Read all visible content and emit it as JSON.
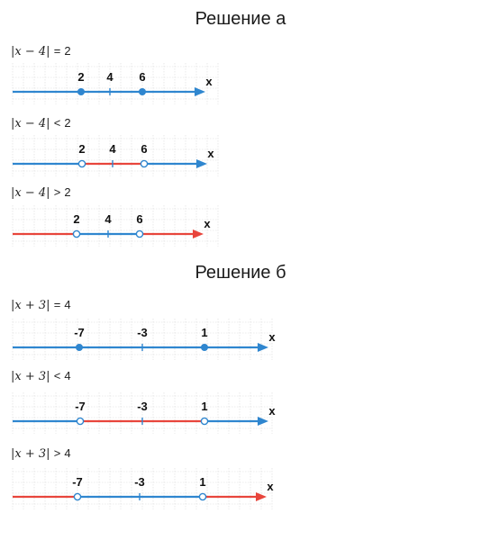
{
  "sections": [
    {
      "title": "Решение а",
      "problems": [
        {
          "eq": {
            "expr": "x − 4",
            "rel": "=",
            "rhs": "2"
          },
          "ticks": [
            "2",
            "4",
            "6"
          ],
          "axis": "x",
          "points": [
            {
              "label": "2",
              "filled": true
            },
            {
              "label": "6",
              "filled": true
            }
          ],
          "segments": [
            {
              "from": "start",
              "to": "end",
              "color": "#2f86cf"
            }
          ]
        },
        {
          "eq": {
            "expr": "x − 4",
            "rel": "<",
            "rhs": "2"
          },
          "ticks": [
            "2",
            "4",
            "6"
          ],
          "axis": "x",
          "points": [
            {
              "label": "2",
              "filled": false
            },
            {
              "label": "6",
              "filled": false
            }
          ],
          "segments": [
            {
              "from": "start",
              "to": "2",
              "color": "#2f86cf"
            },
            {
              "from": "2",
              "to": "6",
              "color": "#e8453c"
            },
            {
              "from": "6",
              "to": "end",
              "color": "#2f86cf"
            }
          ]
        },
        {
          "eq": {
            "expr": "x − 4",
            "rel": ">",
            "rhs": "2"
          },
          "ticks": [
            "2",
            "4",
            "6"
          ],
          "axis": "x",
          "points": [
            {
              "label": "2",
              "filled": false
            },
            {
              "label": "6",
              "filled": false
            }
          ],
          "segments": [
            {
              "from": "start",
              "to": "2",
              "color": "#e8453c"
            },
            {
              "from": "2",
              "to": "6",
              "color": "#2f86cf"
            },
            {
              "from": "6",
              "to": "end",
              "color": "#e8453c"
            }
          ]
        }
      ]
    },
    {
      "title": "Решение б",
      "problems": [
        {
          "eq": {
            "expr": "x + 3",
            "rel": "=",
            "rhs": "4"
          },
          "ticks": [
            "-7",
            "-3",
            "1"
          ],
          "axis": "x",
          "points": [
            {
              "label": "-7",
              "filled": true
            },
            {
              "label": "1",
              "filled": true
            }
          ],
          "segments": [
            {
              "from": "start",
              "to": "end",
              "color": "#2f86cf"
            }
          ]
        },
        {
          "eq": {
            "expr": "x + 3",
            "rel": "<",
            "rhs": "4"
          },
          "ticks": [
            "-7",
            "-3",
            "1"
          ],
          "axis": "x",
          "points": [
            {
              "label": "-7",
              "filled": false
            },
            {
              "label": "1",
              "filled": false
            }
          ],
          "segments": [
            {
              "from": "start",
              "to": "-7",
              "color": "#2f86cf"
            },
            {
              "from": "-7",
              "to": "1",
              "color": "#e8453c"
            },
            {
              "from": "1",
              "to": "end",
              "color": "#2f86cf"
            }
          ]
        },
        {
          "eq": {
            "expr": "x + 3",
            "rel": ">",
            "rhs": "4"
          },
          "ticks": [
            "-7",
            "-3",
            "1"
          ],
          "axis": "x",
          "points": [
            {
              "label": "-7",
              "filled": false
            },
            {
              "label": "1",
              "filled": false
            }
          ],
          "segments": [
            {
              "from": "start",
              "to": "-7",
              "color": "#e8453c"
            },
            {
              "from": "-7",
              "to": "1",
              "color": "#2f86cf"
            },
            {
              "from": "1",
              "to": "end",
              "color": "#e8453c"
            }
          ]
        }
      ]
    }
  ],
  "colors": {
    "blue": "#2f86cf",
    "red": "#e8453c",
    "grid": "#d9d9d9"
  }
}
